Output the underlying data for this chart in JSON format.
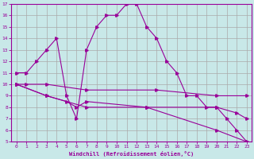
{
  "xlabel": "Windchill (Refroidissement éolien,°C)",
  "ylabel": "",
  "background_color": "#c8e8e8",
  "grid_color": "#aaaaaa",
  "line_color": "#990099",
  "xlim": [
    -0.5,
    23.5
  ],
  "ylim": [
    5,
    17
  ],
  "xticks": [
    0,
    1,
    2,
    3,
    4,
    5,
    6,
    7,
    8,
    9,
    10,
    11,
    12,
    13,
    14,
    15,
    16,
    17,
    18,
    19,
    20,
    21,
    22,
    23
  ],
  "yticks": [
    5,
    6,
    7,
    8,
    9,
    10,
    11,
    12,
    13,
    14,
    15,
    16,
    17
  ],
  "series1_x": [
    0,
    1,
    2,
    3,
    4,
    5,
    6,
    7,
    8,
    9,
    10,
    11,
    12,
    13,
    14,
    15,
    16,
    17,
    18,
    19,
    20,
    21,
    22,
    23
  ],
  "series1_y": [
    11,
    11,
    12,
    13,
    14,
    9,
    7,
    13,
    15,
    16,
    16,
    17,
    17,
    15,
    14,
    12,
    11,
    9,
    9,
    8,
    8,
    7,
    6,
    5
  ],
  "series2_x": [
    0,
    1,
    3,
    7,
    14,
    20,
    23
  ],
  "series2_y": [
    10,
    10,
    10,
    9.5,
    9.5,
    9.0,
    9.0
  ],
  "series3_x": [
    0,
    3,
    5,
    6,
    7,
    13,
    20,
    22,
    23
  ],
  "series3_y": [
    10,
    9,
    8.5,
    8,
    8.5,
    8,
    8,
    7.5,
    7
  ],
  "series4_x": [
    0,
    3,
    7,
    13,
    20,
    23
  ],
  "series4_y": [
    10,
    9,
    8,
    8,
    6,
    5
  ]
}
